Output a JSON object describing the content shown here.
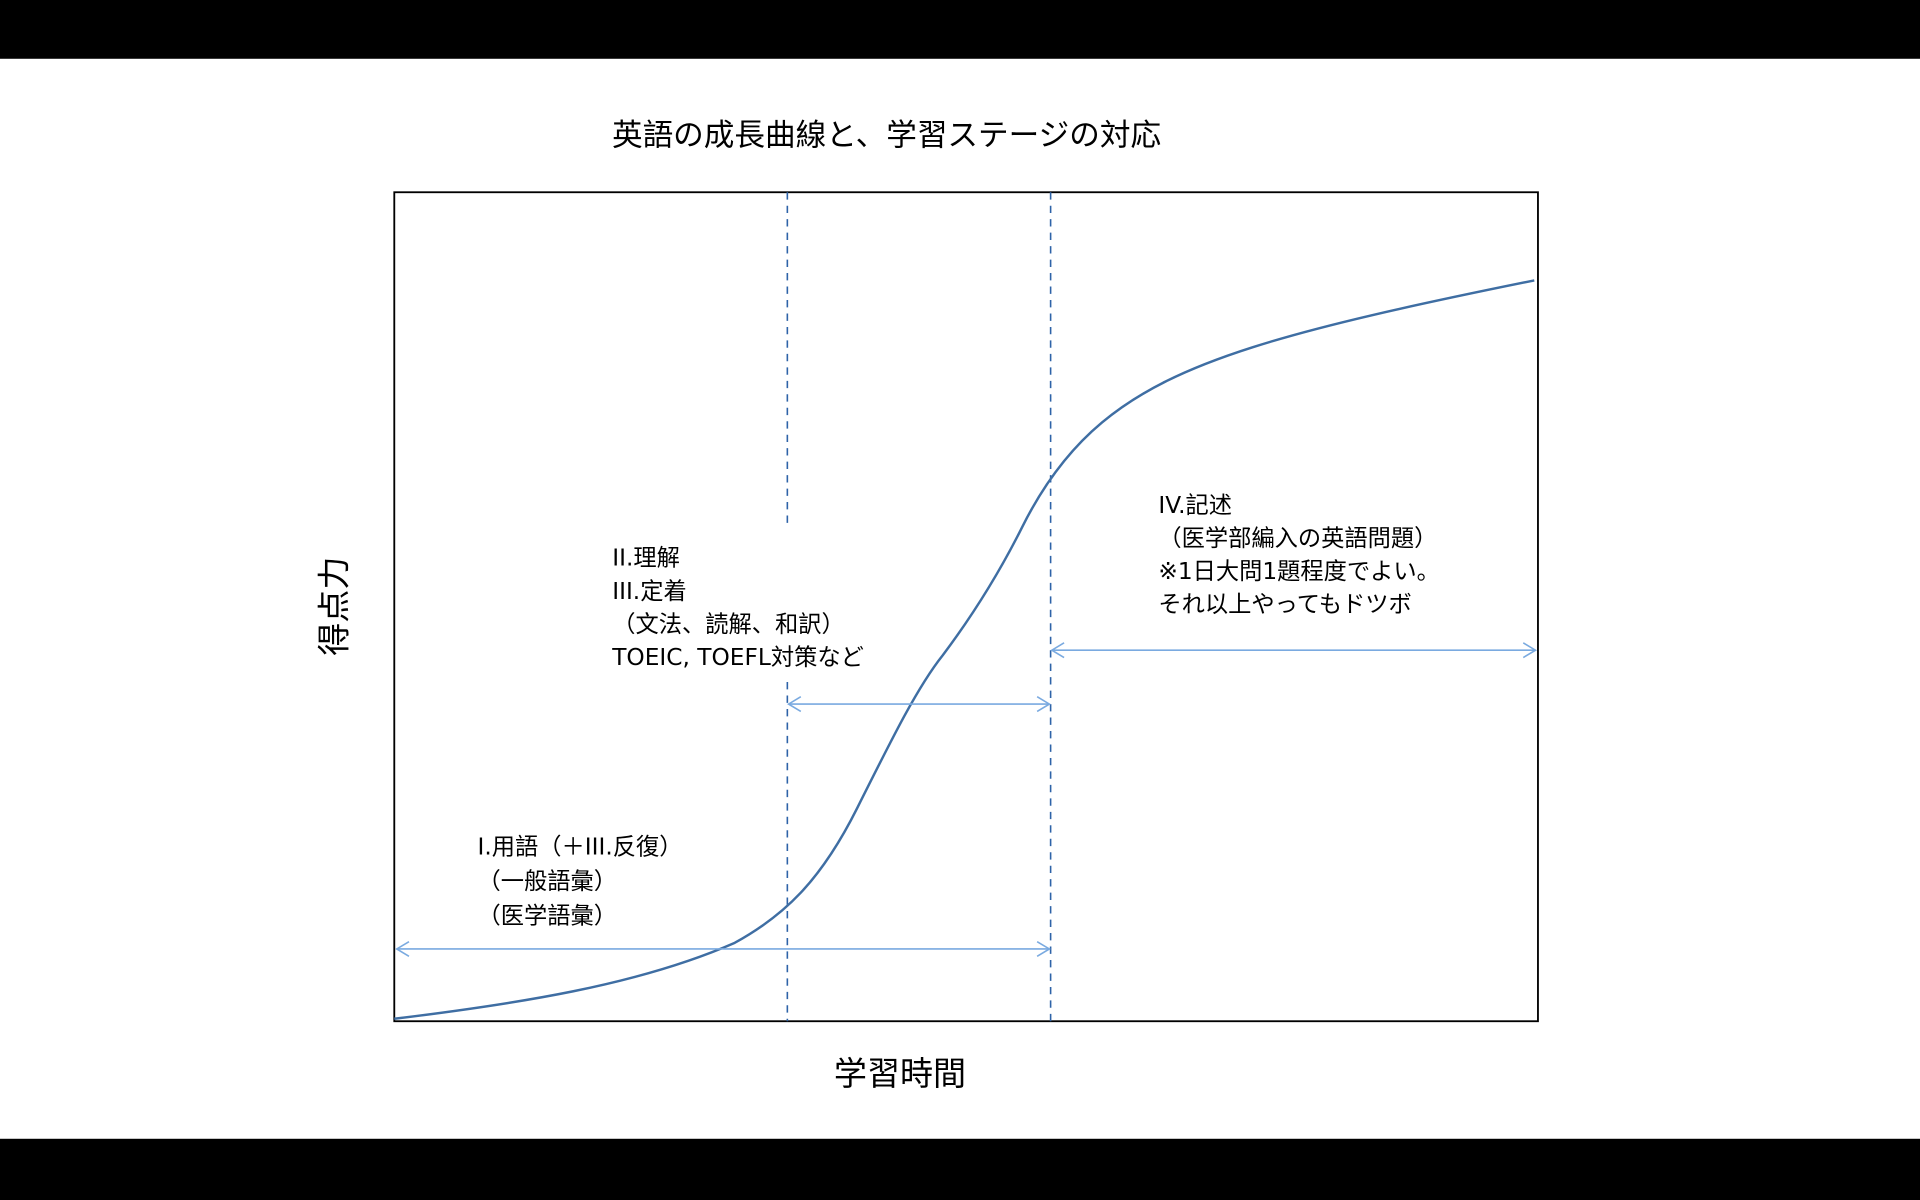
{
  "title": "英語の成長曲線と、学習ステージの対応",
  "colors": {
    "curve": "#3f6ea3",
    "dashed": "#2e63a8",
    "arrow": "#7aaae0",
    "frame": "#000000"
  },
  "chart_data": {
    "type": "line",
    "title": "英語の成長曲線と、学習ステージの対応",
    "xlabel": "学習時間",
    "ylabel": "得点力",
    "grid": false,
    "ticks": false,
    "curve_shape": "sigmoid growth that flattens after stage boundary 2",
    "stage_boundaries": [
      "boundary-1",
      "boundary-2"
    ],
    "annotations": [
      {
        "lines": [
          "I.用語（＋III.反復）",
          "（一般語彙）",
          "（医学語彙）"
        ]
      },
      {
        "lines": [
          "II.理解",
          "III.定着",
          "（文法、読解、和訳）",
          "TOEIC, TOEFL対策など"
        ]
      },
      {
        "lines": [
          "IV.記述",
          "（医学部編入の英語問題）",
          "※1日大問1題程度でよい。",
          "それ以上やってもドツボ"
        ]
      }
    ]
  }
}
